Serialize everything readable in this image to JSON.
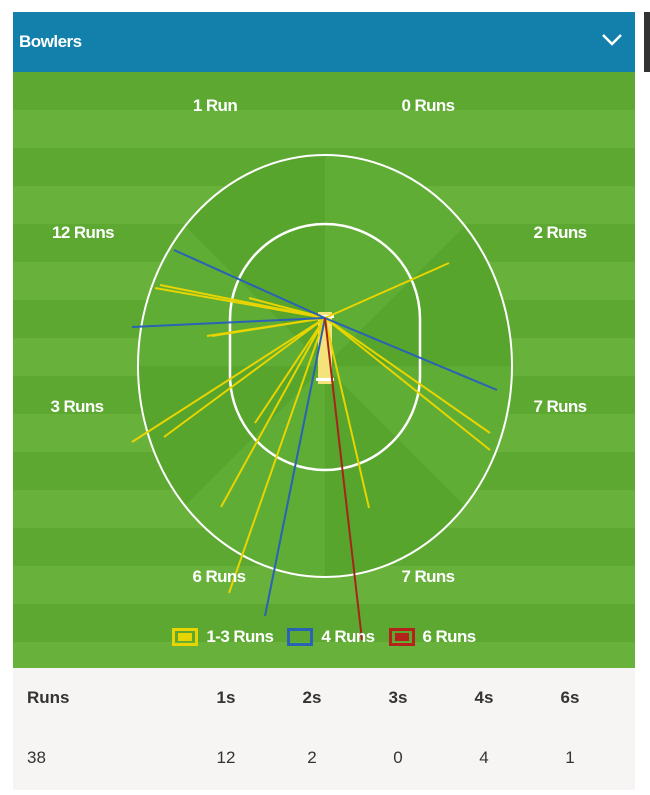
{
  "header": {
    "title": "Bowlers",
    "chevron": "chevron-down-icon"
  },
  "zones": [
    {
      "label": "1 Run",
      "pos": "top-left"
    },
    {
      "label": "0 Runs",
      "pos": "top-right"
    },
    {
      "label": "12 Runs",
      "pos": "upper-left"
    },
    {
      "label": "2 Runs",
      "pos": "upper-right"
    },
    {
      "label": "3 Runs",
      "pos": "lower-left"
    },
    {
      "label": "7 Runs",
      "pos": "lower-right"
    },
    {
      "label": "6 Runs",
      "pos": "bottom-left"
    },
    {
      "label": "7 Runs",
      "pos": "bottom-right"
    }
  ],
  "legend": [
    {
      "label": "1-3 Runs",
      "color": "#e8d400"
    },
    {
      "label": "4 Runs",
      "color": "#2a62b5"
    },
    {
      "label": "6 Runs",
      "color": "#b5221c"
    }
  ],
  "stats": {
    "headers": [
      "Runs",
      "1s",
      "2s",
      "3s",
      "4s",
      "6s"
    ],
    "values": [
      "38",
      "12",
      "2",
      "0",
      "4",
      "1"
    ]
  }
}
